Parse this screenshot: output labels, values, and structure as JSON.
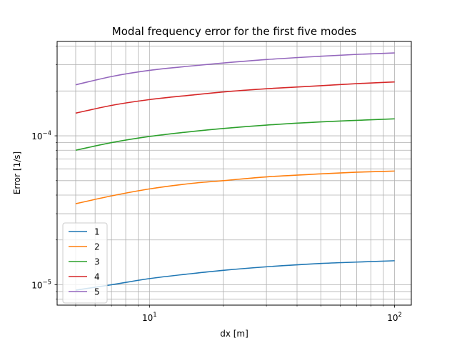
{
  "chart_data": {
    "type": "line",
    "title": "Modal frequency error for the first five modes",
    "xlabel": "dx [m]",
    "ylabel": "Error [1/s]",
    "xscale": "log",
    "yscale": "log",
    "xlim": [
      4.2,
      117
    ],
    "ylim": [
      7.3e-06,
      0.00043
    ],
    "grid": "major and minor",
    "legend_placement": "lower-left",
    "x_ticks": [
      {
        "value": 10,
        "base": "10",
        "exp": "1"
      },
      {
        "value": 100,
        "base": "10",
        "exp": "2"
      }
    ],
    "y_ticks": [
      {
        "value": 1e-05,
        "base": "10",
        "exp": "−5"
      },
      {
        "value": 0.0001,
        "base": "10",
        "exp": "−4"
      }
    ],
    "x": [
      5,
      7,
      10,
      15,
      20,
      30,
      50,
      70,
      100
    ],
    "series": [
      {
        "name": "1",
        "color": "#1f77b4",
        "values": [
          9.2e-06,
          1e-05,
          1.1e-05,
          1.19e-05,
          1.25e-05,
          1.32e-05,
          1.39e-05,
          1.42e-05,
          1.45e-05
        ]
      },
      {
        "name": "2",
        "color": "#ff7f0e",
        "values": [
          3.5e-05,
          3.95e-05,
          4.4e-05,
          4.8e-05,
          5e-05,
          5.3e-05,
          5.55e-05,
          5.7e-05,
          5.8e-05
        ]
      },
      {
        "name": "3",
        "color": "#2ca02c",
        "values": [
          8e-05,
          9e-05,
          9.9e-05,
          0.000107,
          0.000112,
          0.000118,
          0.000124,
          0.000127,
          0.00013
        ]
      },
      {
        "name": "4",
        "color": "#d62728",
        "values": [
          0.000142,
          0.00016,
          0.000175,
          0.000188,
          0.000197,
          0.000207,
          0.000217,
          0.000224,
          0.00023
        ]
      },
      {
        "name": "5",
        "color": "#9467bd",
        "values": [
          0.00022,
          0.00025,
          0.000275,
          0.000295,
          0.000308,
          0.000325,
          0.000342,
          0.000352,
          0.00036
        ]
      }
    ]
  }
}
